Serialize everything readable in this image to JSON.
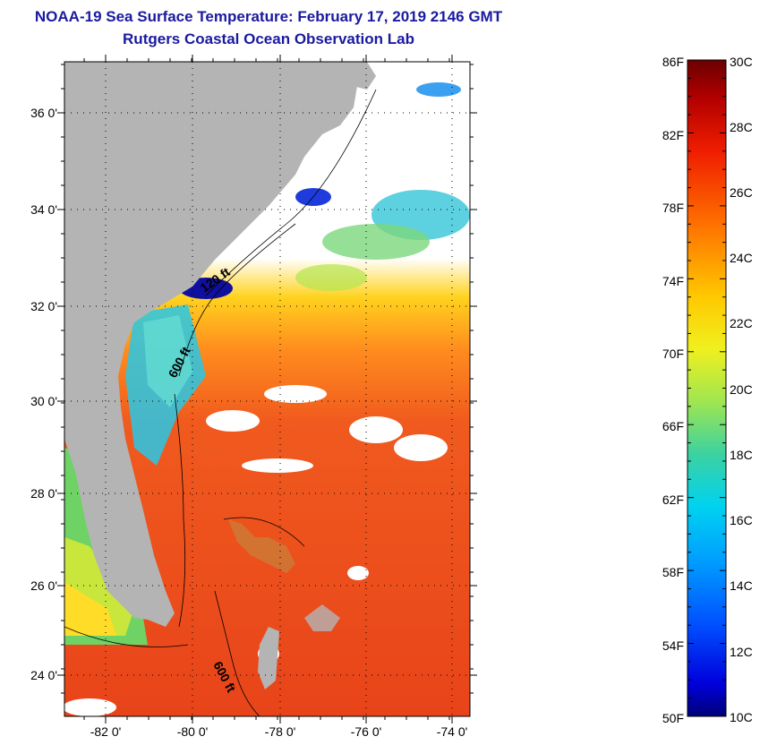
{
  "title": "NOAA-19 Sea Surface Temperature:  February 17, 2019 2146 GMT",
  "subtitle": "Rutgers Coastal Ocean Observation Lab",
  "map": {
    "lat_ticks": [
      "36 0'",
      "34 0'",
      "32 0'",
      "30 0'",
      "28 0'",
      "26 0'",
      "24 0'"
    ],
    "lon_ticks": [
      "-82 0'",
      "-80 0'",
      "-78 0'",
      "-76 0'",
      "-74 0'"
    ],
    "contour_labels": [
      "120 ft",
      "600 ft",
      "600 ft"
    ]
  },
  "colorbar": {
    "f_labels": [
      "86F",
      "82F",
      "78F",
      "74F",
      "70F",
      "66F",
      "62F",
      "58F",
      "54F",
      "50F"
    ],
    "c_labels": [
      "30C",
      "28C",
      "26C",
      "24C",
      "22C",
      "20C",
      "18C",
      "16C",
      "14C",
      "12C",
      "10C"
    ]
  },
  "colors": {
    "land": "#b4b4b4",
    "title": "#1a1aa0",
    "warm": "#f04a1e",
    "cold": "#1010c8"
  }
}
